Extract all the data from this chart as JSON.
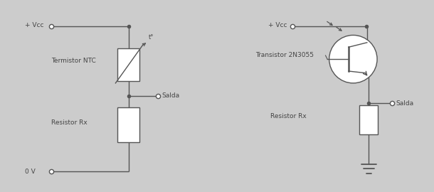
{
  "bg_color": "#cccccc",
  "panel_bg": "#ffffff",
  "line_color": "#555555",
  "text_color": "#444444",
  "lw": 1.0,
  "dot_size": 4,
  "font_size": 6.5,
  "output_label": "Salda",
  "left_labels": {
    "vcc": "+ Vcc",
    "component": "Termistor NTC",
    "resistor": "Resistor Rx",
    "gnd": "0 V"
  },
  "right_labels": {
    "vcc": "+ Vcc",
    "transistor": "Transistor 2N3055",
    "resistor": "Resistor Rx",
    "output": "Salda"
  }
}
